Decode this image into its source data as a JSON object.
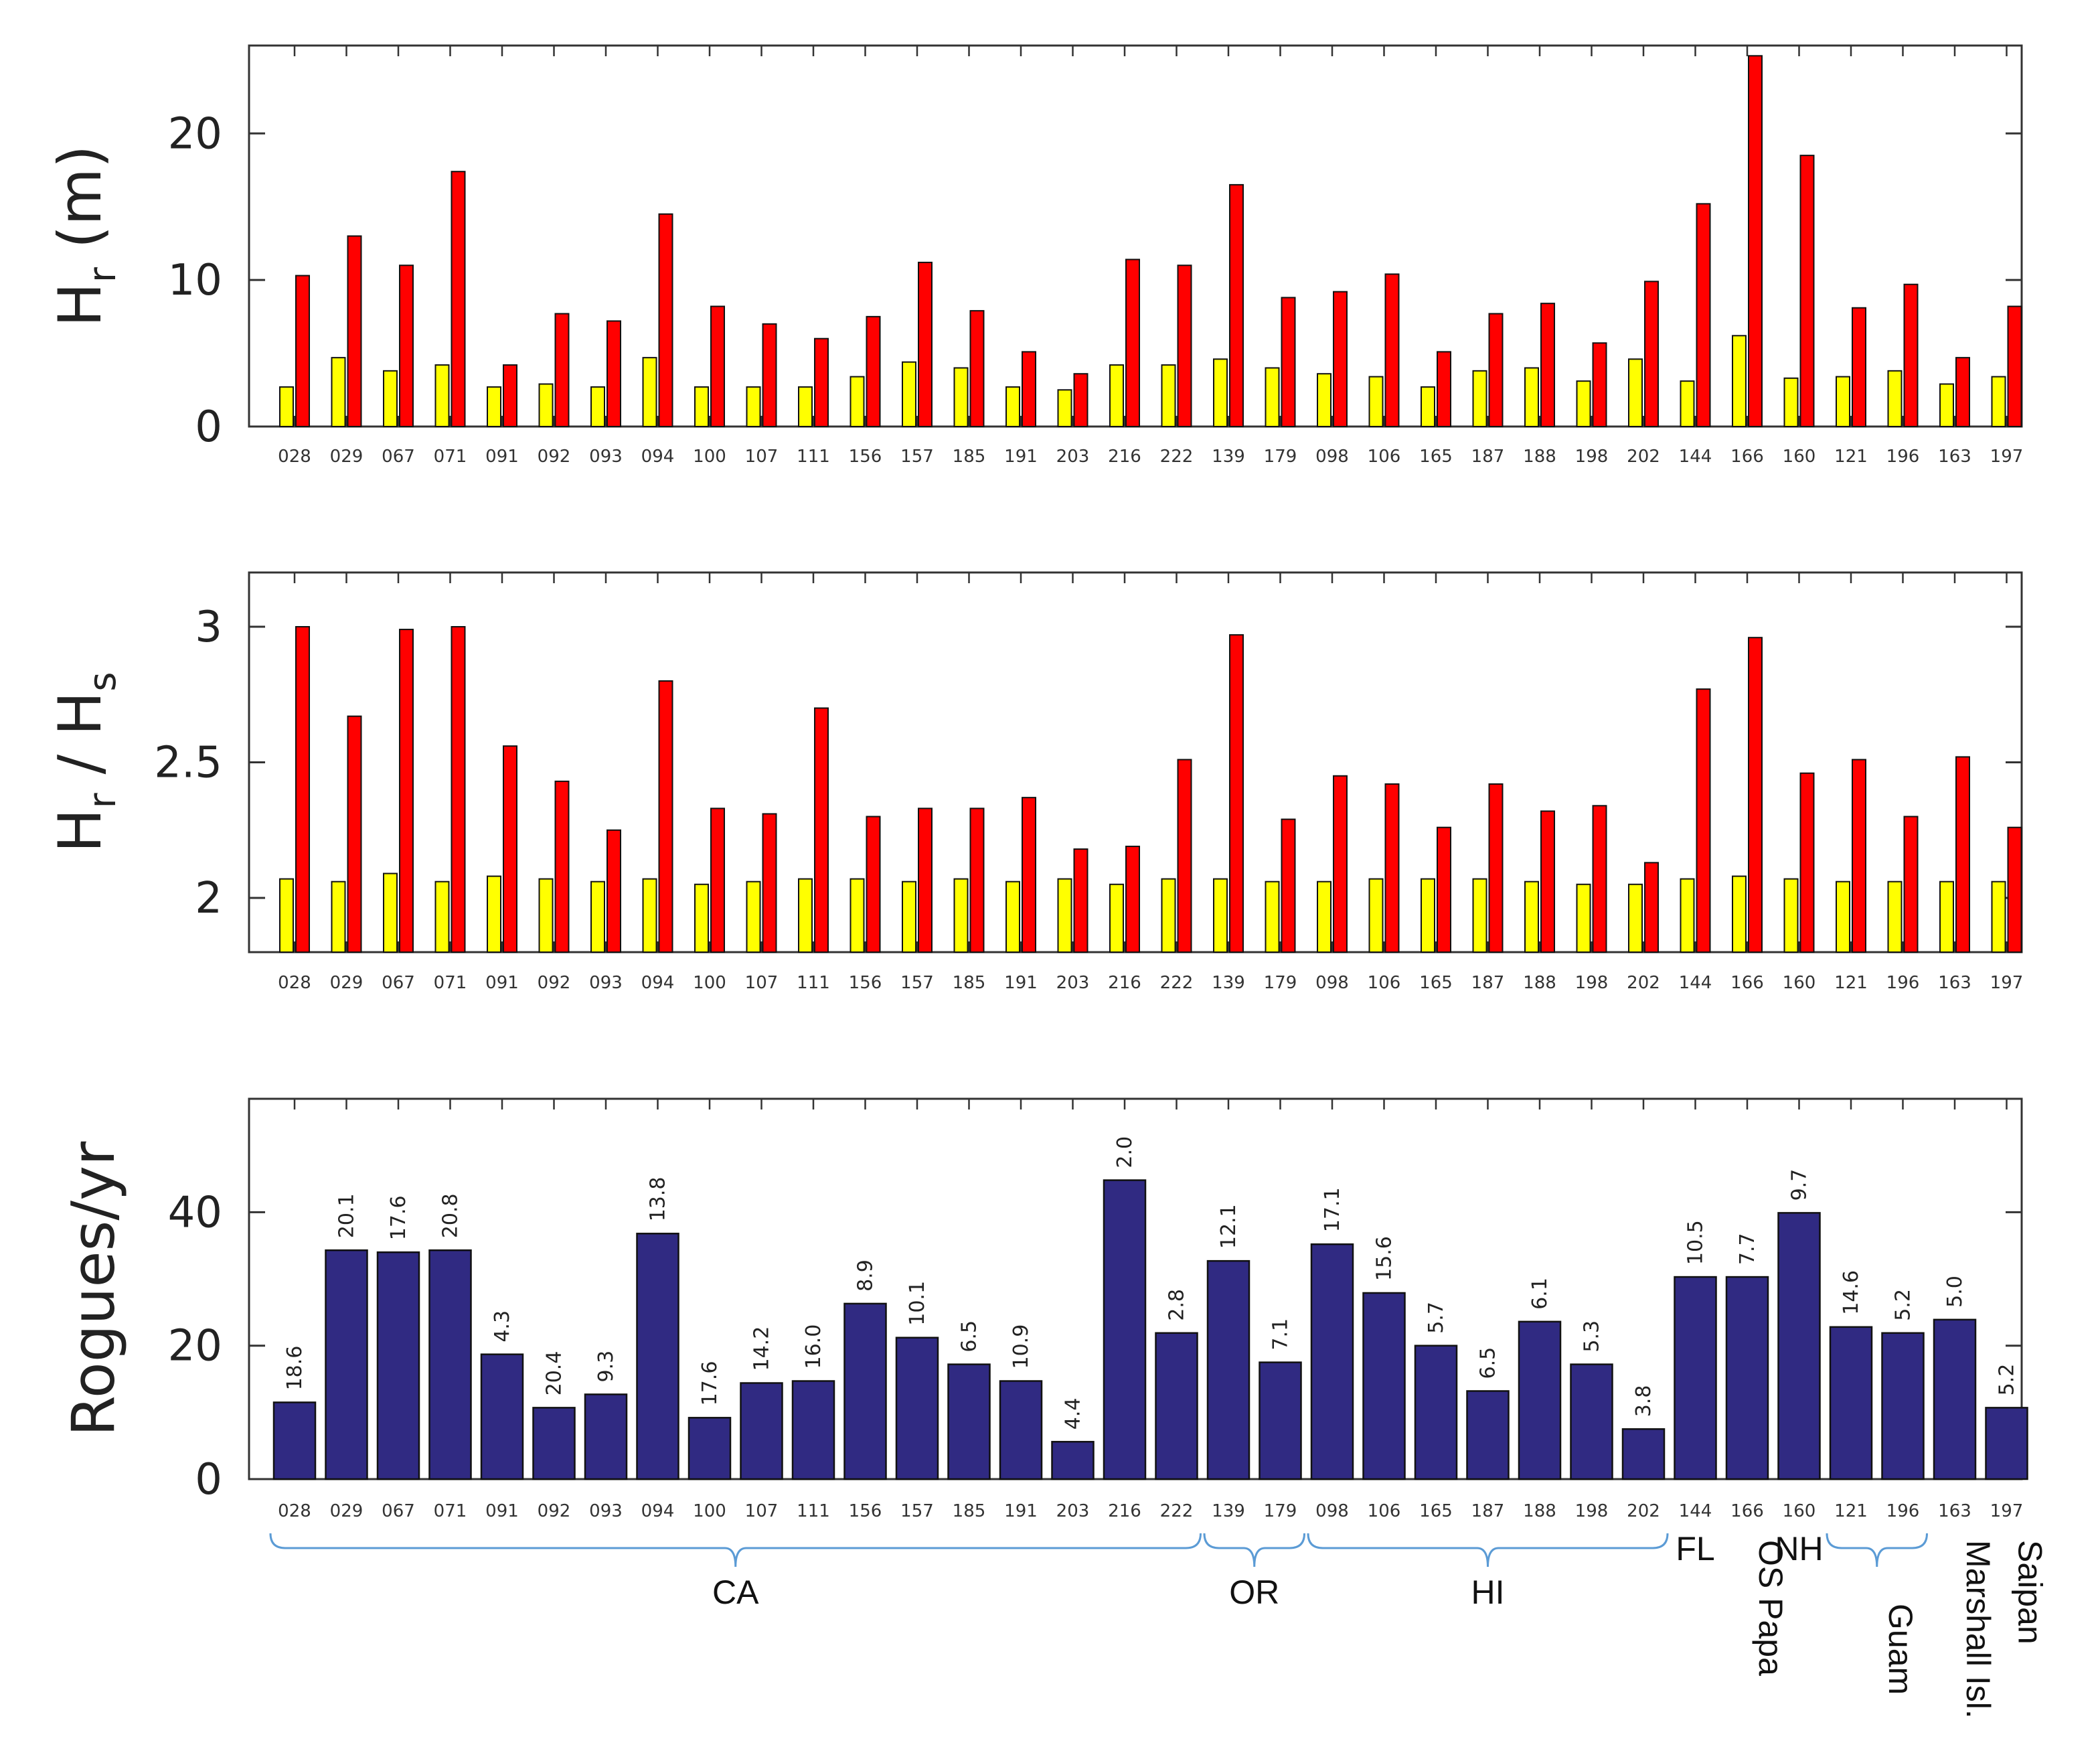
{
  "chart_data": [
    {
      "type": "bar",
      "id": "hr",
      "ylabel_main": "H",
      "ylabel_sub": "r",
      "ylabel_tail": " (m)",
      "ylim": [
        0,
        26
      ],
      "yticks": [
        0,
        10,
        20
      ],
      "ytick_labels": [
        "0",
        "10",
        "20"
      ],
      "categories": [
        "028",
        "029",
        "067",
        "071",
        "091",
        "092",
        "093",
        "094",
        "100",
        "107",
        "111",
        "156",
        "157",
        "185",
        "191",
        "203",
        "216",
        "222",
        "139",
        "179",
        "098",
        "106",
        "165",
        "187",
        "188",
        "198",
        "202",
        "144",
        "166",
        "160",
        "121",
        "196",
        "163",
        "197"
      ],
      "series": [
        {
          "name": "yellow",
          "color": "#ffff00",
          "values": [
            2.7,
            4.7,
            3.8,
            4.2,
            2.7,
            2.9,
            2.7,
            4.7,
            2.7,
            2.7,
            2.7,
            3.4,
            4.4,
            4.0,
            2.7,
            2.5,
            4.2,
            4.2,
            4.6,
            4.0,
            3.6,
            3.4,
            2.7,
            3.8,
            4.0,
            3.1,
            4.6,
            3.1,
            6.2,
            3.3,
            3.4,
            3.8,
            2.9,
            3.4
          ]
        },
        {
          "name": "red",
          "color": "#ff0000",
          "values": [
            10.3,
            13.0,
            11.0,
            17.4,
            4.2,
            7.7,
            7.2,
            14.5,
            8.2,
            7.0,
            6.0,
            7.5,
            11.2,
            7.9,
            5.1,
            3.6,
            11.4,
            11.0,
            16.5,
            8.8,
            9.2,
            10.4,
            5.1,
            7.7,
            8.4,
            5.7,
            9.9,
            15.2,
            25.3,
            18.5,
            8.1,
            9.7,
            4.7,
            8.2
          ]
        }
      ]
    },
    {
      "type": "bar",
      "id": "ratio",
      "ylabel_main": "H",
      "ylabel_sub": "r",
      "ylabel_tail": " / H",
      "ylabel_sub2": "s",
      "ylim": [
        1.8,
        3.2
      ],
      "yticks": [
        2,
        2.5,
        3
      ],
      "ytick_labels": [
        "2",
        "2.5",
        "3"
      ],
      "categories": [
        "028",
        "029",
        "067",
        "071",
        "091",
        "092",
        "093",
        "094",
        "100",
        "107",
        "111",
        "156",
        "157",
        "185",
        "191",
        "203",
        "216",
        "222",
        "139",
        "179",
        "098",
        "106",
        "165",
        "187",
        "188",
        "198",
        "202",
        "144",
        "166",
        "160",
        "121",
        "196",
        "163",
        "197"
      ],
      "series": [
        {
          "name": "yellow",
          "color": "#ffff00",
          "values": [
            2.07,
            2.06,
            2.09,
            2.06,
            2.08,
            2.07,
            2.06,
            2.07,
            2.05,
            2.06,
            2.07,
            2.07,
            2.06,
            2.07,
            2.06,
            2.07,
            2.05,
            2.07,
            2.07,
            2.06,
            2.06,
            2.07,
            2.07,
            2.07,
            2.06,
            2.05,
            2.05,
            2.07,
            2.08,
            2.07,
            2.06,
            2.06,
            2.06,
            2.06
          ]
        },
        {
          "name": "red",
          "color": "#ff0000",
          "values": [
            3.0,
            2.67,
            2.99,
            3.0,
            2.56,
            2.43,
            2.25,
            2.8,
            2.33,
            2.31,
            2.7,
            2.3,
            2.33,
            2.33,
            2.37,
            2.18,
            2.19,
            2.51,
            2.97,
            2.29,
            2.45,
            2.42,
            2.26,
            2.42,
            2.32,
            2.34,
            2.13,
            2.77,
            2.96,
            2.46,
            2.51,
            2.3,
            2.52,
            2.26
          ]
        }
      ]
    },
    {
      "type": "bar",
      "id": "rogues",
      "ylabel_main": "Rogues/yr",
      "ylim": [
        0,
        57
      ],
      "yticks": [
        0,
        20,
        40
      ],
      "ytick_labels": [
        "0",
        "20",
        "40"
      ],
      "color": "#302a82",
      "categories": [
        "028",
        "029",
        "067",
        "071",
        "091",
        "092",
        "093",
        "094",
        "100",
        "107",
        "111",
        "156",
        "157",
        "185",
        "191",
        "203",
        "216",
        "222",
        "139",
        "179",
        "098",
        "106",
        "165",
        "187",
        "188",
        "198",
        "202",
        "144",
        "166",
        "160",
        "121",
        "196",
        "163",
        "197"
      ],
      "values": [
        11.5,
        34.3,
        34.0,
        34.3,
        18.7,
        10.7,
        12.7,
        36.8,
        9.2,
        14.4,
        14.7,
        26.3,
        21.2,
        17.2,
        14.7,
        5.6,
        44.8,
        21.9,
        32.7,
        17.5,
        35.2,
        27.9,
        20.0,
        13.2,
        23.6,
        17.2,
        7.5,
        30.3,
        30.3,
        39.9,
        22.8,
        21.9,
        23.9,
        10.7
      ],
      "data_labels": [
        "18.6",
        "20.1",
        "17.6",
        "20.8",
        "4.3",
        "20.4",
        "9.3",
        "13.8",
        "17.6",
        "14.2",
        "16.0",
        "8.9",
        "10.1",
        "6.5",
        "10.9",
        "4.4",
        "2.0",
        "2.8",
        "12.1",
        "7.1",
        "17.1",
        "15.6",
        "5.7",
        "6.5",
        "6.1",
        "5.3",
        "3.8",
        "10.5",
        "7.7",
        "9.7",
        "14.6",
        "5.2",
        "5.0",
        "5.2"
      ],
      "regions": [
        {
          "label": "CA",
          "from": 0,
          "to": 17,
          "bracket": true,
          "vertical": false
        },
        {
          "label": "OR",
          "from": 18,
          "to": 19,
          "bracket": true,
          "vertical": false
        },
        {
          "label": "HI",
          "from": 20,
          "to": 26,
          "bracket": true,
          "vertical": false
        },
        {
          "label": "FL",
          "from": 27,
          "to": 27,
          "bracket": false,
          "vertical": false
        },
        {
          "label": "OS Papa",
          "from": 28,
          "to": 28,
          "bracket": false,
          "vertical": true
        },
        {
          "label": "NH",
          "from": 29,
          "to": 29,
          "bracket": false,
          "vertical": false
        },
        {
          "label": "Guam",
          "from": 30,
          "to": 31,
          "bracket": true,
          "vertical": true
        },
        {
          "label": "Marshall Isl.",
          "from": 32,
          "to": 32,
          "bracket": false,
          "vertical": true
        },
        {
          "label": "Saipan",
          "from": 33,
          "to": 33,
          "bracket": false,
          "vertical": true
        }
      ]
    }
  ]
}
